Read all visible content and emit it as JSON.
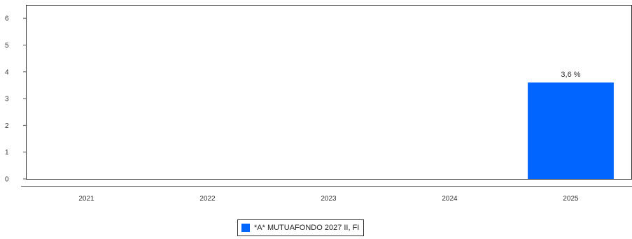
{
  "chart_data": {
    "type": "bar",
    "categories": [
      "2021",
      "2022",
      "2023",
      "2024",
      "2025"
    ],
    "series": [
      {
        "name": "*A* MUTUAFONDO 2027 II, FI",
        "values": [
          null,
          null,
          null,
          null,
          3.6
        ],
        "data_labels": [
          "",
          "",
          "",
          "",
          "3,6 %"
        ],
        "color": "#0066ff"
      }
    ],
    "y_ticks": [
      "0",
      "1",
      "2",
      "3",
      "4",
      "5",
      "6"
    ],
    "ylim": [
      0,
      6.5
    ],
    "grid": false,
    "legend_position": "bottom-center"
  }
}
